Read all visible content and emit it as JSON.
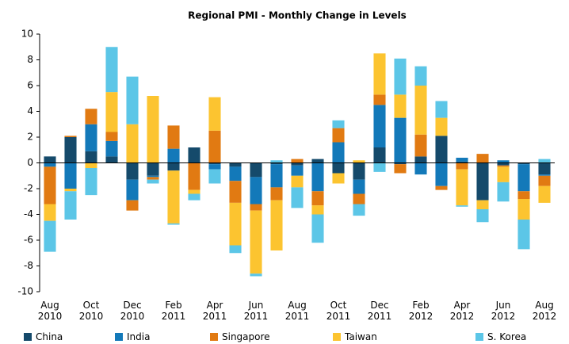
{
  "chart_data": {
    "type": "stacked_bar",
    "title": "Regional PMI  - Monthly Change in Levels",
    "categories": [
      "Aug 2010",
      null,
      "Oct 2010",
      null,
      "Dec 2010",
      null,
      "Feb 2011",
      null,
      "Apr 2011",
      null,
      "Jun 2011",
      null,
      "Aug 2011",
      null,
      "Oct 2011",
      null,
      "Dec 2011",
      null,
      "Feb 2012",
      null,
      "Apr 2012",
      null,
      "Jun 2012",
      null,
      "Aug 2012"
    ],
    "series": [
      {
        "name": "China",
        "color": "#154a6b",
        "values": [
          0.5,
          2.0,
          0.9,
          0.5,
          -1.3,
          -1.0,
          -0.6,
          1.2,
          -0.1,
          -0.3,
          -1.1,
          -0.1,
          -0.2,
          0.3,
          -0.8,
          -1.3,
          1.2,
          -0.1,
          0.5,
          2.1,
          0.1,
          -2.9,
          -0.2,
          -0.1,
          -0.9
        ]
      },
      {
        "name": "India",
        "color": "#1379b9",
        "values": [
          -0.3,
          -2.0,
          2.1,
          1.2,
          -1.6,
          -0.1,
          1.1,
          0,
          -0.4,
          -1.1,
          -2.1,
          -1.8,
          -0.8,
          -2.2,
          1.6,
          -1.1,
          3.3,
          3.5,
          -0.9,
          -1.8,
          0.3,
          0,
          0.2,
          -2.1,
          -0.1
        ]
      },
      {
        "name": "Singapore",
        "color": "#e17a12",
        "values": [
          -2.9,
          0.1,
          1.2,
          0.7,
          -0.8,
          -0.2,
          1.8,
          -2.1,
          2.5,
          -1.7,
          -0.5,
          -1.0,
          0.3,
          -1.1,
          1.1,
          -0.8,
          0.8,
          -0.7,
          1.7,
          -0.3,
          -0.5,
          0.7,
          -0.1,
          -0.6,
          -0.8
        ]
      },
      {
        "name": "Taiwan",
        "color": "#fcc430",
        "values": [
          -1.3,
          -0.2,
          -0.4,
          3.1,
          3.0,
          5.2,
          -4.1,
          -0.3,
          2.6,
          -3.3,
          -4.9,
          -3.9,
          -0.9,
          -0.7,
          -0.8,
          0.2,
          3.2,
          1.8,
          3.8,
          1.4,
          -2.8,
          -0.7,
          -1.2,
          -1.6,
          -1.3
        ]
      },
      {
        "name": "S. Korea",
        "color": "#5cc6e7",
        "values": [
          -2.4,
          -2.2,
          -2.1,
          3.5,
          3.7,
          -0.3,
          -0.1,
          -0.5,
          -1.1,
          -0.6,
          -0.2,
          0.2,
          -1.6,
          -2.2,
          0.6,
          -0.9,
          -0.7,
          2.8,
          1.5,
          1.3,
          -0.1,
          -1.0,
          -1.5,
          -2.3,
          0.3
        ]
      }
    ],
    "ylim": [
      -10,
      10
    ],
    "yticks": [
      -10,
      -8,
      -6,
      -4,
      -2,
      0,
      2,
      4,
      6,
      8,
      10
    ],
    "grid": false
  }
}
